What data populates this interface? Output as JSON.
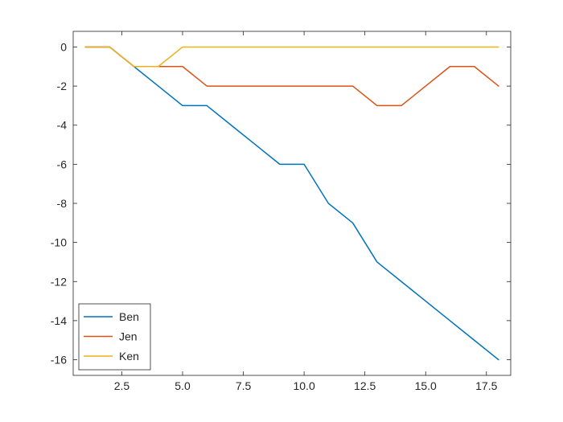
{
  "chart_data": {
    "type": "line",
    "title": "",
    "xlabel": "",
    "ylabel": "",
    "xlim": [
      0.5,
      18.5
    ],
    "ylim": [
      -16.8,
      0.8
    ],
    "x_ticks": [
      2.5,
      5.0,
      7.5,
      10.0,
      12.5,
      15.0,
      17.5
    ],
    "x_tick_labels": [
      "2.5",
      "5.0",
      "7.5",
      "10.0",
      "12.5",
      "15.0",
      "17.5"
    ],
    "y_ticks": [
      0,
      -2,
      -4,
      -6,
      -8,
      -10,
      -12,
      -14,
      -16
    ],
    "y_tick_labels": [
      "0",
      "-2",
      "-4",
      "-6",
      "-8",
      "-10",
      "-12",
      "-14",
      "-16"
    ],
    "grid": false,
    "legend_position": "lower-left",
    "x": [
      1,
      2,
      3,
      4,
      5,
      6,
      7,
      8,
      9,
      10,
      11,
      12,
      13,
      14,
      15,
      16,
      17,
      18
    ],
    "series": [
      {
        "name": "Ben",
        "color": "#0072BD",
        "values": [
          0,
          0,
          -1,
          -2,
          -3,
          -3,
          -4,
          -5,
          -6,
          -6,
          -8,
          -9,
          -11,
          -12,
          -13,
          -14,
          -15,
          -16
        ]
      },
      {
        "name": "Jen",
        "color": "#D95319",
        "values": [
          0,
          0,
          -1,
          -1,
          -1,
          -2,
          -2,
          -2,
          -2,
          -2,
          -2,
          -2,
          -3,
          -3,
          -2,
          -1,
          -1,
          -2
        ]
      },
      {
        "name": "Ken",
        "color": "#EDB120",
        "values": [
          0,
          0,
          -1,
          -1,
          0,
          0,
          0,
          0,
          0,
          0,
          0,
          0,
          0,
          0,
          0,
          0,
          0,
          0
        ]
      }
    ]
  }
}
